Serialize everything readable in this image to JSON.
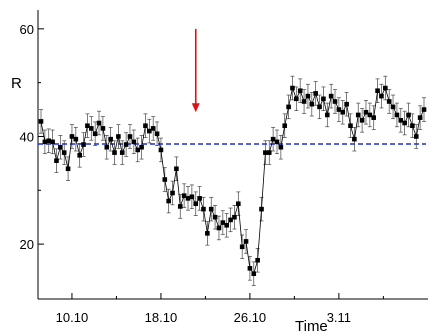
{
  "chart_data": {
    "type": "scatter",
    "title": "",
    "xlabel": "Time",
    "ylabel": "R",
    "x_tick_labels": [
      "10.10",
      "18.10",
      "26.10",
      "3.11"
    ],
    "y_ticks": [
      20,
      40,
      60
    ],
    "ylim": [
      9.8,
      63.5
    ],
    "xlim": [
      0,
      99
    ],
    "x_tick_positions": [
      8,
      31,
      54,
      77
    ],
    "x_minor_positions": [
      19.5,
      42.5,
      65.5,
      88.5
    ],
    "y_minor_ticks": [
      30,
      50
    ],
    "reference_line": {
      "y": 38.6,
      "style": "dashed",
      "color": "#1b2fd6"
    },
    "arrow": {
      "x": 40,
      "y_from": 60,
      "y_to": 44.5,
      "color": "#d81414"
    },
    "marker_color": "#000000",
    "series": [
      {
        "points": [
          [
            0,
            42.8
          ],
          [
            1,
            39.0
          ],
          [
            2,
            39.2
          ],
          [
            3,
            39.0
          ],
          [
            4,
            35.5
          ],
          [
            5,
            38.0
          ],
          [
            6,
            37.0
          ],
          [
            7,
            34.0
          ],
          [
            8,
            40.0
          ],
          [
            9,
            39.5
          ],
          [
            10,
            36.5
          ],
          [
            11,
            38.5
          ],
          [
            12,
            42.0
          ],
          [
            13,
            41.5
          ],
          [
            14,
            40.5
          ],
          [
            15,
            42.5
          ],
          [
            16,
            41.5
          ],
          [
            17,
            38.0
          ],
          [
            18,
            39.5
          ],
          [
            19,
            37.0
          ],
          [
            20,
            40.0
          ],
          [
            21,
            37.0
          ],
          [
            22,
            38.5
          ],
          [
            23,
            40.0
          ],
          [
            24,
            39.0
          ],
          [
            25,
            37.5
          ],
          [
            26,
            38.0
          ],
          [
            27,
            42.0
          ],
          [
            28,
            41.0
          ],
          [
            29,
            41.5
          ],
          [
            30,
            40.5
          ],
          [
            31,
            37.5
          ],
          [
            32,
            32.0
          ],
          [
            33,
            28.0
          ],
          [
            34,
            29.5
          ],
          [
            35,
            34.0
          ],
          [
            36,
            27.0
          ],
          [
            37,
            29.0
          ],
          [
            38,
            28.5
          ],
          [
            39,
            28.8
          ],
          [
            40,
            27.5
          ],
          [
            41,
            28.5
          ],
          [
            42,
            26.5
          ],
          [
            43,
            22.0
          ],
          [
            44,
            26.5
          ],
          [
            45,
            25.0
          ],
          [
            46,
            23.0
          ],
          [
            47,
            24.0
          ],
          [
            48,
            23.5
          ],
          [
            49,
            24.5
          ],
          [
            50,
            25.0
          ],
          [
            51,
            27.5
          ],
          [
            52,
            19.5
          ],
          [
            53,
            20.5
          ],
          [
            54,
            15.5
          ],
          [
            55,
            14.5
          ],
          [
            56,
            17.0
          ],
          [
            57,
            26.5
          ],
          [
            58,
            37.0
          ],
          [
            59,
            37.0
          ],
          [
            60,
            39.5
          ],
          [
            61,
            39.0
          ],
          [
            62,
            38.0
          ],
          [
            63,
            42.0
          ],
          [
            64,
            45.5
          ],
          [
            65,
            49.0
          ],
          [
            66,
            47.0
          ],
          [
            67,
            48.5
          ],
          [
            68,
            46.5
          ],
          [
            69,
            47.5
          ],
          [
            70,
            46.0
          ],
          [
            71,
            48.0
          ],
          [
            72,
            45.5
          ],
          [
            73,
            47.0
          ],
          [
            74,
            44.0
          ],
          [
            75,
            47.5
          ],
          [
            76,
            46.5
          ],
          [
            77,
            45.0
          ],
          [
            78,
            44.5
          ],
          [
            79,
            46.0
          ],
          [
            80,
            42.0
          ],
          [
            81,
            39.5
          ],
          [
            82,
            44.0
          ],
          [
            83,
            43.0
          ],
          [
            84,
            44.5
          ],
          [
            85,
            44.0
          ],
          [
            86,
            43.5
          ],
          [
            87,
            48.5
          ],
          [
            88,
            47.5
          ],
          [
            89,
            49.0
          ],
          [
            90,
            46.5
          ],
          [
            91,
            45.5
          ],
          [
            92,
            44.0
          ],
          [
            93,
            43.0
          ],
          [
            94,
            42.5
          ],
          [
            95,
            44.0
          ],
          [
            96,
            42.0
          ],
          [
            97,
            40.0
          ],
          [
            98,
            43.5
          ],
          [
            99,
            45.0
          ]
        ],
        "error": 2.2
      }
    ]
  }
}
